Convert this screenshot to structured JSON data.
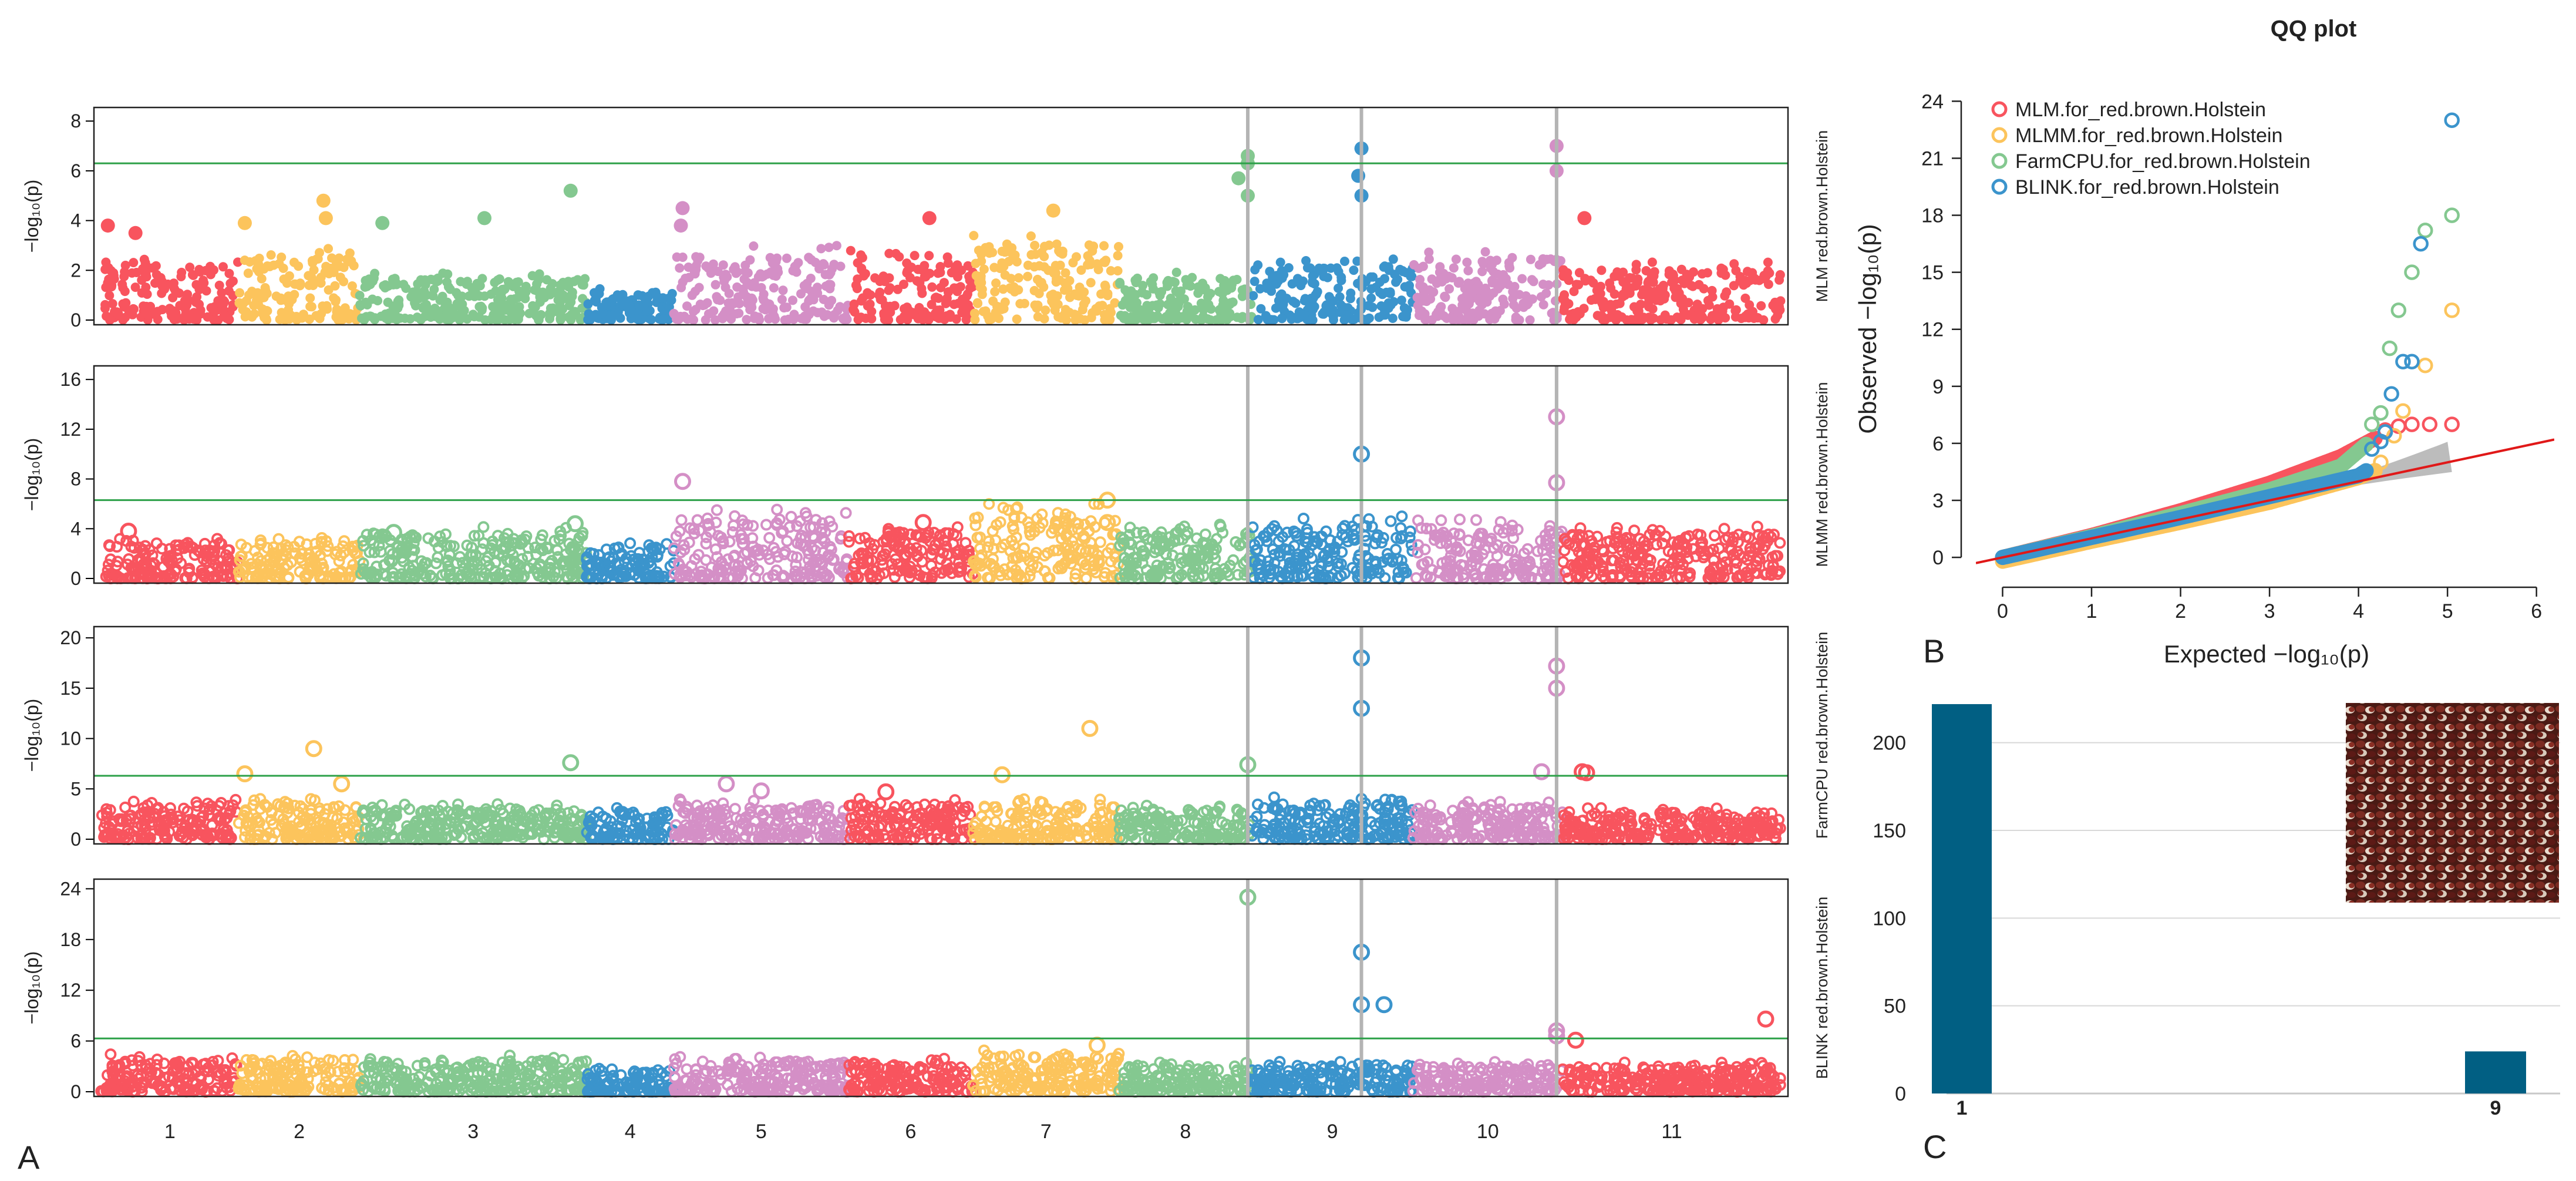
{
  "chart_data": [
    {
      "type": "scatter",
      "subtype": "manhattan",
      "panel_letter": "A",
      "chromosomes": [
        "1",
        "2",
        "3",
        "4",
        "5",
        "6",
        "7",
        "8",
        "9",
        "10",
        "11"
      ],
      "chromosome_colors": [
        "#f8545e",
        "#fcc45c",
        "#84c890",
        "#3b94cc",
        "#d48fc6",
        "#f8545e",
        "#fcc45c",
        "#84c890",
        "#3b94cc",
        "#d48fc6",
        "#f8545e"
      ],
      "threshold_color": "#2ca048",
      "highlight_line_color": "#b4b4b4",
      "highlight_loci": [
        {
          "chrom": 8,
          "pos": 0.97
        },
        {
          "chrom": 9,
          "pos": 0.68
        },
        {
          "chrom": 10,
          "pos": 0.96
        }
      ],
      "grid": false,
      "panels": [
        {
          "side_label": "MLM red.brown.Holstein",
          "ylabel": "−log₁₀(p)",
          "ylim": [
            0,
            8.5
          ],
          "yticks": [
            0,
            2,
            4,
            6,
            8
          ],
          "threshold": 6.3,
          "filled": true,
          "baseline_chr": [
            2.6,
            3.0,
            2.0,
            1.3,
            3.0,
            2.8,
            3.6,
            2.0,
            2.6,
            3.0,
            2.4
          ],
          "peaks": [
            {
              "chrom": 1,
              "pos": 0.05,
              "value": 3.8
            },
            {
              "chrom": 1,
              "pos": 0.25,
              "value": 3.5
            },
            {
              "chrom": 2,
              "pos": 0.05,
              "value": 3.9
            },
            {
              "chrom": 2,
              "pos": 0.7,
              "value": 4.8
            },
            {
              "chrom": 2,
              "pos": 0.72,
              "value": 4.1
            },
            {
              "chrom": 3,
              "pos": 0.1,
              "value": 3.9
            },
            {
              "chrom": 3,
              "pos": 0.55,
              "value": 4.1
            },
            {
              "chrom": 3,
              "pos": 0.93,
              "value": 5.2
            },
            {
              "chrom": 5,
              "pos": 0.05,
              "value": 4.5
            },
            {
              "chrom": 5,
              "pos": 0.04,
              "value": 3.8
            },
            {
              "chrom": 6,
              "pos": 0.65,
              "value": 4.1
            },
            {
              "chrom": 7,
              "pos": 0.55,
              "value": 4.4
            },
            {
              "chrom": 8,
              "pos": 0.97,
              "value": 6.6
            },
            {
              "chrom": 8,
              "pos": 0.97,
              "value": 6.3
            },
            {
              "chrom": 8,
              "pos": 0.97,
              "value": 5.0
            },
            {
              "chrom": 8,
              "pos": 0.9,
              "value": 5.7
            },
            {
              "chrom": 9,
              "pos": 0.68,
              "value": 6.9
            },
            {
              "chrom": 9,
              "pos": 0.66,
              "value": 5.8
            },
            {
              "chrom": 9,
              "pos": 0.68,
              "value": 5.0
            },
            {
              "chrom": 10,
              "pos": 0.96,
              "value": 7.0
            },
            {
              "chrom": 10,
              "pos": 0.96,
              "value": 6.0
            },
            {
              "chrom": 11,
              "pos": 0.1,
              "value": 4.1
            }
          ]
        },
        {
          "side_label": "MLMM red.brown.Holstein",
          "ylabel": "−log₁₀(p)",
          "ylim": [
            0,
            17
          ],
          "yticks": [
            0,
            4,
            8,
            12,
            16
          ],
          "threshold": 6.3,
          "filled": false,
          "baseline_chr": [
            3.4,
            3.4,
            4.2,
            3.0,
            5.6,
            4.5,
            6.0,
            4.4,
            5.0,
            4.8,
            4.2
          ],
          "peaks": [
            {
              "chrom": 1,
              "pos": 0.2,
              "value": 3.8
            },
            {
              "chrom": 3,
              "pos": 0.15,
              "value": 3.7
            },
            {
              "chrom": 3,
              "pos": 0.95,
              "value": 4.4
            },
            {
              "chrom": 5,
              "pos": 0.05,
              "value": 7.8
            },
            {
              "chrom": 6,
              "pos": 0.6,
              "value": 4.5
            },
            {
              "chrom": 7,
              "pos": 0.92,
              "value": 6.3
            },
            {
              "chrom": 7,
              "pos": 0.92,
              "value": 4.5
            },
            {
              "chrom": 9,
              "pos": 0.68,
              "value": 10.0
            },
            {
              "chrom": 10,
              "pos": 0.96,
              "value": 13.0
            },
            {
              "chrom": 10,
              "pos": 0.96,
              "value": 7.7
            }
          ]
        },
        {
          "side_label": "FarmCPU red.brown.Holstein",
          "ylabel": "−log₁₀(p)",
          "ylim": [
            0,
            21
          ],
          "yticks": [
            0,
            5,
            10,
            15,
            20
          ],
          "threshold": 6.3,
          "filled": false,
          "baseline_chr": [
            4.0,
            4.0,
            3.6,
            3.3,
            4.0,
            4.1,
            4.0,
            3.6,
            4.2,
            3.8,
            3.2
          ],
          "peaks": [
            {
              "chrom": 2,
              "pos": 0.05,
              "value": 6.5
            },
            {
              "chrom": 2,
              "pos": 0.62,
              "value": 9.0
            },
            {
              "chrom": 2,
              "pos": 0.85,
              "value": 5.5
            },
            {
              "chrom": 3,
              "pos": 0.93,
              "value": 7.6
            },
            {
              "chrom": 5,
              "pos": 0.3,
              "value": 5.5
            },
            {
              "chrom": 5,
              "pos": 0.5,
              "value": 4.8
            },
            {
              "chrom": 6,
              "pos": 0.3,
              "value": 4.7
            },
            {
              "chrom": 7,
              "pos": 0.2,
              "value": 6.4
            },
            {
              "chrom": 7,
              "pos": 0.8,
              "value": 11.0
            },
            {
              "chrom": 8,
              "pos": 0.97,
              "value": 7.4
            },
            {
              "chrom": 9,
              "pos": 0.68,
              "value": 18.0
            },
            {
              "chrom": 9,
              "pos": 0.68,
              "value": 13.0
            },
            {
              "chrom": 10,
              "pos": 0.86,
              "value": 6.7
            },
            {
              "chrom": 10,
              "pos": 0.96,
              "value": 17.2
            },
            {
              "chrom": 10,
              "pos": 0.96,
              "value": 15.0
            },
            {
              "chrom": 11,
              "pos": 0.09,
              "value": 6.7
            },
            {
              "chrom": 11,
              "pos": 0.11,
              "value": 6.6
            }
          ]
        },
        {
          "side_label": "BLINK red.brown.Holstein",
          "ylabel": "−log₁₀(p)",
          "ylim": [
            0,
            25
          ],
          "yticks": [
            0,
            6,
            12,
            18,
            24
          ],
          "threshold": 6.3,
          "filled": false,
          "baseline_chr": [
            4.5,
            4.5,
            4.3,
            3.3,
            4.3,
            4.0,
            5.0,
            3.6,
            3.8,
            3.6,
            3.5
          ],
          "peaks": [
            {
              "chrom": 7,
              "pos": 0.85,
              "value": 5.5
            },
            {
              "chrom": 8,
              "pos": 0.97,
              "value": 23.0
            },
            {
              "chrom": 9,
              "pos": 0.68,
              "value": 16.5
            },
            {
              "chrom": 9,
              "pos": 0.68,
              "value": 10.3
            },
            {
              "chrom": 9,
              "pos": 0.82,
              "value": 10.3
            },
            {
              "chrom": 10,
              "pos": 0.96,
              "value": 7.2
            },
            {
              "chrom": 10,
              "pos": 0.96,
              "value": 6.6
            },
            {
              "chrom": 11,
              "pos": 0.06,
              "value": 6.1
            },
            {
              "chrom": 11,
              "pos": 0.93,
              "value": 8.6
            }
          ]
        }
      ]
    },
    {
      "type": "scatter",
      "subtype": "qq",
      "panel_letter": "B",
      "title": "QQ plot",
      "xlabel": "Expected −log₁₀(p)",
      "ylabel": "Observed −log₁₀(p)",
      "xlim": [
        -0.3,
        6.2
      ],
      "ylim": [
        -0.8,
        25
      ],
      "xticks": [
        0,
        1,
        2,
        3,
        4,
        5,
        6
      ],
      "yticks": [
        0,
        3,
        6,
        9,
        12,
        15,
        18,
        21,
        24
      ],
      "grid": false,
      "legend_position": "top-left",
      "series": [
        {
          "name": "MLM.for_red.brown.Holstein",
          "color": "#f8545e",
          "curve": [
            [
              0,
              0
            ],
            [
              1,
              1.15
            ],
            [
              2,
              2.45
            ],
            [
              3,
              3.9
            ],
            [
              3.8,
              5.3
            ],
            [
              4.2,
              6.3
            ]
          ],
          "tail": [
            [
              4.3,
              6.7
            ],
            [
              4.45,
              6.9
            ],
            [
              4.6,
              7.0
            ],
            [
              4.8,
              7.0
            ],
            [
              5.05,
              7.0
            ]
          ]
        },
        {
          "name": "MLMM.for_red.brown.Holstein",
          "color": "#fcc45c",
          "curve": [
            [
              0,
              -0.2
            ],
            [
              1,
              0.85
            ],
            [
              2,
              1.85
            ],
            [
              3,
              2.9
            ],
            [
              4,
              4.2
            ],
            [
              4.2,
              4.6
            ]
          ],
          "tail": [
            [
              4.25,
              5.0
            ],
            [
              4.4,
              6.4
            ],
            [
              4.5,
              7.7
            ],
            [
              4.75,
              10.1
            ],
            [
              5.05,
              13.0
            ]
          ]
        },
        {
          "name": "FarmCPU.for_red.brown.Holstein",
          "color": "#84c890",
          "curve": [
            [
              0,
              0
            ],
            [
              1,
              1.1
            ],
            [
              2,
              2.3
            ],
            [
              3,
              3.55
            ],
            [
              3.8,
              4.8
            ],
            [
              4.1,
              6.0
            ]
          ],
          "tail": [
            [
              4.15,
              7.0
            ],
            [
              4.25,
              7.6
            ],
            [
              4.35,
              11.0
            ],
            [
              4.45,
              13.0
            ],
            [
              4.6,
              15.0
            ],
            [
              4.75,
              17.2
            ],
            [
              5.05,
              18.0
            ]
          ]
        },
        {
          "name": "BLINK.for_red.brown.Holstein",
          "color": "#3b94cc",
          "curve": [
            [
              0,
              0
            ],
            [
              1,
              1.05
            ],
            [
              2,
              2.1
            ],
            [
              3,
              3.2
            ],
            [
              4,
              4.3
            ],
            [
              4.1,
              4.6
            ]
          ],
          "tail": [
            [
              4.15,
              5.7
            ],
            [
              4.25,
              6.1
            ],
            [
              4.3,
              6.6
            ],
            [
              4.37,
              8.6
            ],
            [
              4.5,
              10.3
            ],
            [
              4.6,
              10.3
            ],
            [
              4.7,
              16.5
            ],
            [
              5.05,
              23.0
            ]
          ]
        }
      ],
      "reference_line_color": "#e01818",
      "ci_band_color": "#b0b0b0"
    },
    {
      "type": "bar",
      "panel_letter": "C",
      "categories": [
        "1",
        "9"
      ],
      "values": [
        222,
        24
      ],
      "ylim": [
        0,
        225
      ],
      "yticks": [
        0,
        50,
        100,
        150,
        200
      ],
      "bar_color": "#015f83",
      "grid": true,
      "inset": "photo-of-red-brown-seeds"
    }
  ]
}
